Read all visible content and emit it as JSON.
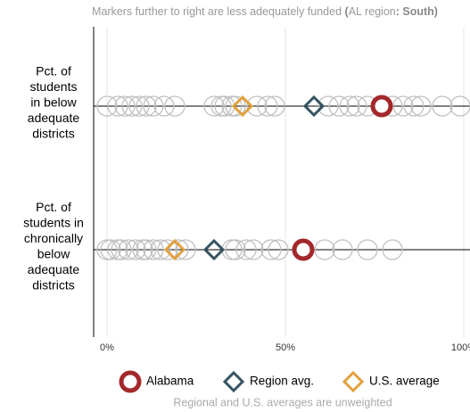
{
  "chart_data": {
    "type": "strip",
    "title_parts": [
      {
        "text": "Markers further to right are less adequately funded ",
        "bold": false
      },
      {
        "text": "(",
        "bold": true
      },
      {
        "text": "AL region",
        "bold": false
      },
      {
        "text": ": South)",
        "bold": true
      }
    ],
    "categories": [
      [
        "Pct. of",
        "students",
        "in below",
        "adequate",
        "districts"
      ],
      [
        "Pct. of",
        "students in",
        "chronically",
        "below",
        "adequate",
        "districts"
      ]
    ],
    "districts": {
      "color": "#c0c0c0",
      "values": [
        [
          0,
          3,
          5,
          7,
          9,
          11,
          13,
          16,
          19,
          30,
          32,
          33,
          35,
          36,
          42,
          45,
          47,
          62,
          65,
          68,
          70,
          73,
          80,
          83,
          86,
          88,
          94,
          99
        ],
        [
          0,
          1,
          3,
          4,
          6,
          8,
          10,
          11,
          13,
          15,
          17,
          20,
          22,
          35,
          36,
          39,
          41,
          46,
          48,
          61,
          66,
          73,
          80
        ]
      ]
    },
    "series": [
      {
        "name": "Alabama",
        "color": "#a3282b",
        "marker": "circle",
        "values": [
          77,
          55
        ]
      },
      {
        "name": "Region avg.",
        "color": "#34545f",
        "marker": "diamond",
        "values": [
          58,
          30
        ]
      },
      {
        "name": "U.S. average",
        "color": "#e2a03e",
        "marker": "diamond",
        "values": [
          38,
          19
        ]
      }
    ],
    "xlim": [
      -3.75,
      101.75
    ],
    "xticks": [
      {
        "value": 0,
        "label": "0%"
      },
      {
        "value": 50,
        "label": "50%"
      },
      {
        "value": 100,
        "label": "100%"
      }
    ],
    "grid": true,
    "footnote": "Regional and U.S. averages are unweighted"
  }
}
